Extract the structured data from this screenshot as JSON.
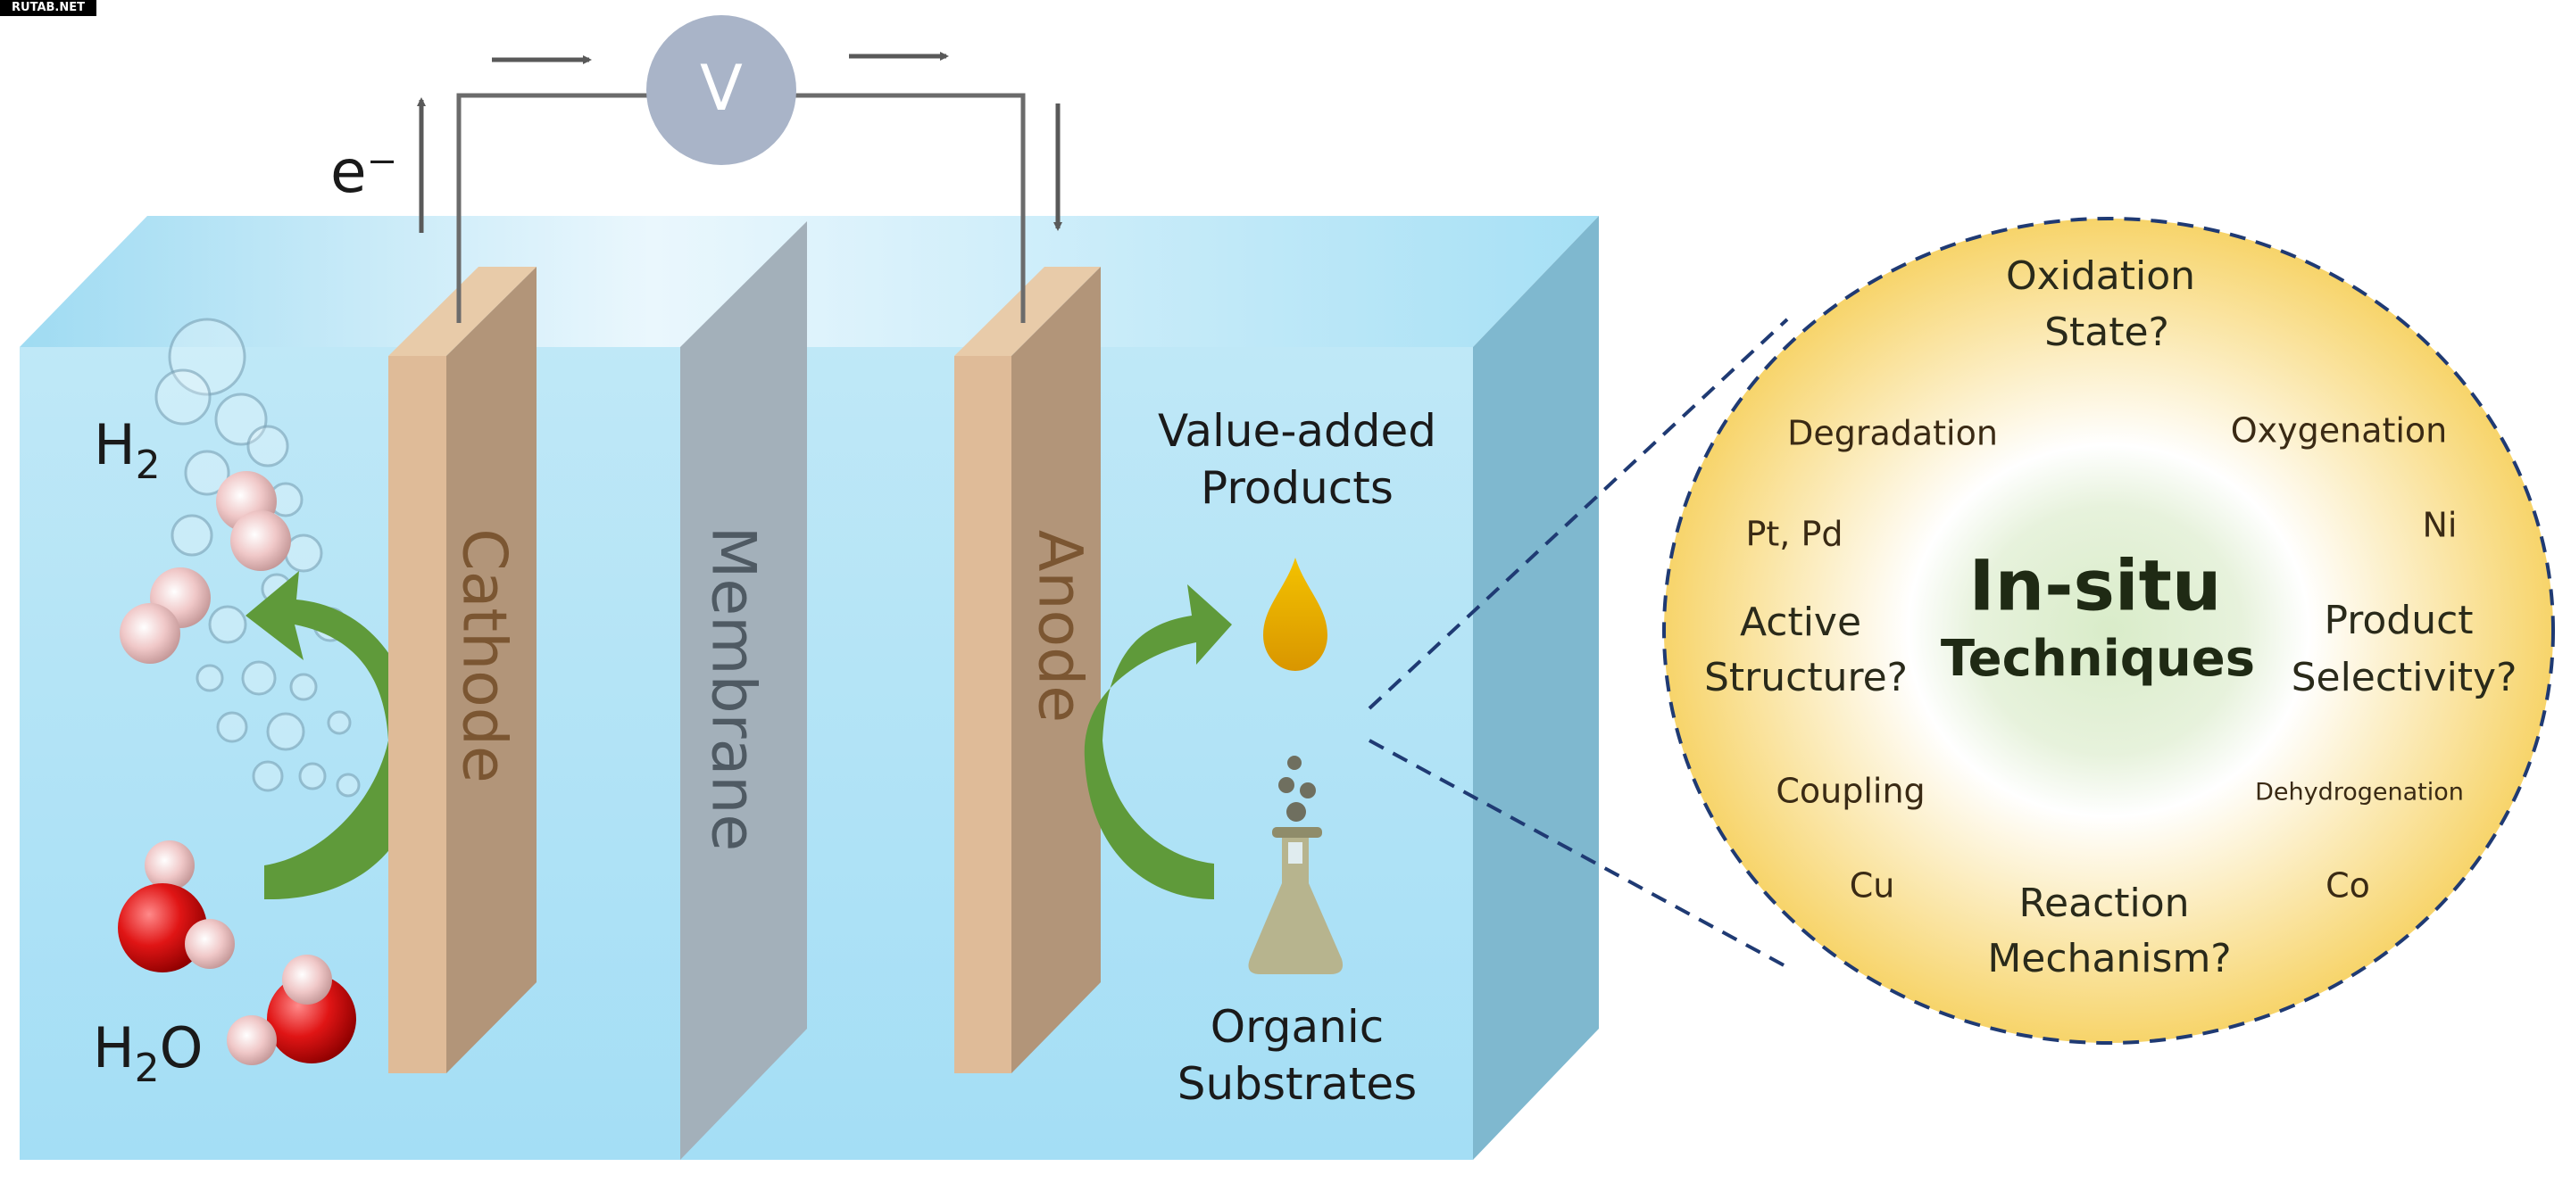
{
  "watermark": "RUTAB.NET",
  "circuit": {
    "meter_label": "V",
    "electron_label": "e⁻"
  },
  "cell": {
    "cathode": "Cathode",
    "membrane": "Membrane",
    "anode": "Anode",
    "h2": {
      "main": "H",
      "sub": "2"
    },
    "h2o": {
      "main": "H",
      "sub": "2",
      "tail": "O"
    },
    "products": [
      "Value-added",
      "Products"
    ],
    "substrates": [
      "Organic",
      "Substrates"
    ]
  },
  "insitu": {
    "title": "In-situ",
    "subtitle": "Techniques",
    "oxidation_state": [
      "Oxidation",
      "State?"
    ],
    "active_structure": [
      "Active",
      "Structure?"
    ],
    "product_selectivity": [
      "Product",
      "Selectivity?"
    ],
    "reaction_mechanism": [
      "Reaction",
      "Mechanism?"
    ],
    "reactions": {
      "degradation": "Degradation",
      "oxygenation": "Oxygenation",
      "coupling": "Coupling",
      "dehydrogenation": "Dehydrogenation"
    },
    "metals": {
      "pt_pd": "Pt, Pd",
      "ni": "Ni",
      "cu": "Cu",
      "co": "Co"
    }
  },
  "colors": {
    "electrolyte": "#a9e1f5",
    "electrode": "#dfbb98",
    "membrane": "#a3b0ba",
    "arrow": "#5f9a3a",
    "circle_edge": "#f6d36b",
    "dash": "#1f3a73"
  }
}
